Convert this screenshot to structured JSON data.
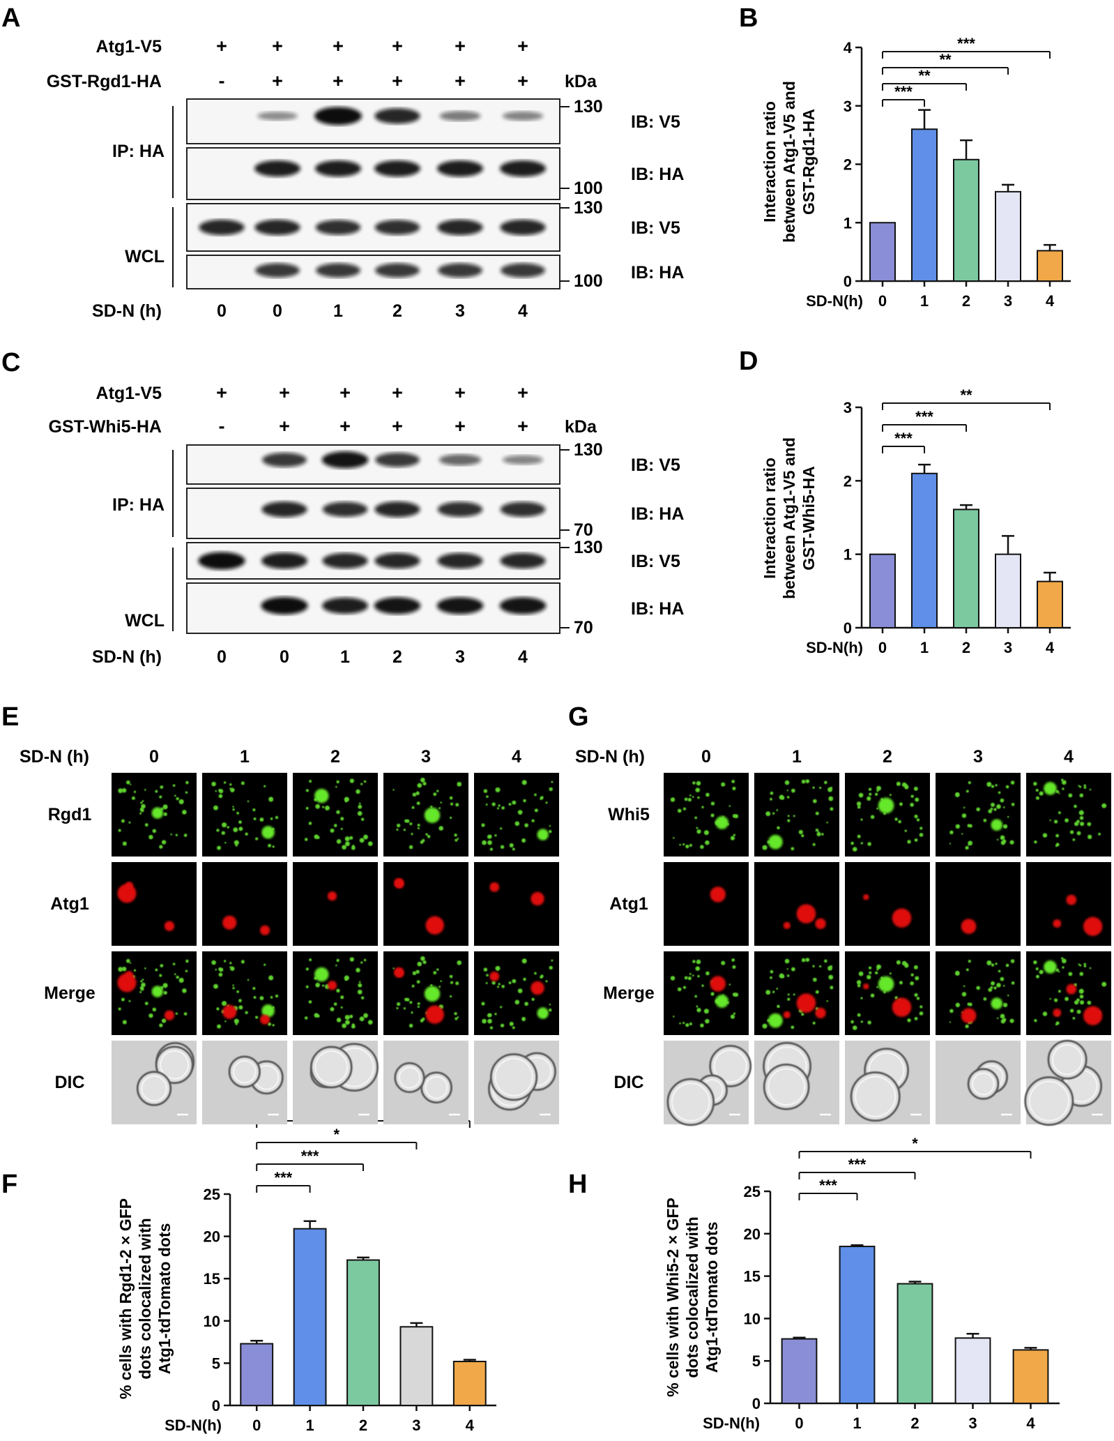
{
  "panels": [
    "A",
    "B",
    "C",
    "D",
    "E",
    "F",
    "G",
    "H"
  ],
  "panel_A": {
    "row1_label": "Atg1-V5",
    "row2_label": "GST-Rgd1-HA",
    "row1_signs": [
      "+",
      "+",
      "+",
      "+",
      "+",
      "+"
    ],
    "row2_signs": [
      "-",
      "+",
      "+",
      "+",
      "+",
      "+"
    ],
    "kda": "kDa",
    "ip_label": "IP: HA",
    "wcl_label": "WCL",
    "ib": [
      "IB:  V5",
      "IB:  HA",
      "IB:  V5",
      "IB:  HA"
    ],
    "markers": [
      "130",
      "100",
      "130",
      "100"
    ],
    "sdn_label": "SD-N (h)",
    "sdn_values": [
      "0",
      "0",
      "1",
      "2",
      "3",
      "4"
    ],
    "band_intensity": [
      [
        0,
        0.25,
        1.0,
        0.8,
        0.35,
        0.3
      ],
      [
        0,
        0.85,
        0.85,
        0.85,
        0.85,
        0.85
      ],
      [
        0.8,
        0.8,
        0.75,
        0.75,
        0.8,
        0.8
      ],
      [
        0,
        0.7,
        0.7,
        0.7,
        0.7,
        0.7
      ]
    ]
  },
  "panel_C": {
    "row1_label": "Atg1-V5",
    "row2_label": "GST-Whi5-HA",
    "row1_signs": [
      "+",
      "+",
      "+",
      "+",
      "+",
      "+"
    ],
    "row2_signs": [
      "-",
      "+",
      "+",
      "+",
      "+",
      "+"
    ],
    "kda": "kDa",
    "ip_label": "IP: HA",
    "wcl_label": "WCL",
    "ib": [
      "IB:  V5",
      "IB:  HA",
      "IB:  V5",
      "IB:  HA"
    ],
    "markers": [
      "130",
      "70",
      "130",
      "70"
    ],
    "sdn_label": "SD-N (h)",
    "sdn_values": [
      "0",
      "0",
      "1",
      "2",
      "3",
      "4"
    ],
    "band_intensity": [
      [
        0,
        0.7,
        0.9,
        0.7,
        0.45,
        0.3
      ],
      [
        0,
        0.8,
        0.75,
        0.8,
        0.75,
        0.75
      ],
      [
        0.95,
        0.85,
        0.8,
        0.8,
        0.8,
        0.8
      ],
      [
        0,
        0.95,
        0.85,
        0.9,
        0.9,
        0.9
      ]
    ]
  },
  "panel_E": {
    "sdn_label": "SD-N (h)",
    "columns": [
      "0",
      "1",
      "2",
      "3",
      "4"
    ],
    "rows": [
      "Rgd1",
      "Atg1",
      "Merge",
      "DIC"
    ]
  },
  "panel_G": {
    "sdn_label": "SD-N (h)",
    "columns": [
      "0",
      "1",
      "2",
      "3",
      "4"
    ],
    "rows": [
      "Whi5",
      "Atg1",
      "Merge",
      "DIC"
    ]
  },
  "colors": [
    "#8a8ed6",
    "#5f8fe8",
    "#7cc9a0",
    "#e4e6f6",
    "#f0a848"
  ],
  "colors_F": [
    "#8a8ed6",
    "#5f8fe8",
    "#7cc9a0",
    "#d8d8d8",
    "#f0a848"
  ],
  "chart_data": [
    {
      "panel": "B",
      "type": "bar",
      "categories": [
        "0",
        "1",
        "2",
        "3",
        "4"
      ],
      "values": [
        1.0,
        2.6,
        2.08,
        1.53,
        0.52
      ],
      "errors": [
        0,
        0.33,
        0.33,
        0.12,
        0.1
      ],
      "xlabel": "SD-N(h)",
      "ylabel": [
        "Interaction ratio",
        "between Atg1-V5 and",
        "GST-Rgd1-HA"
      ],
      "ylim": [
        0,
        4
      ],
      "yticks": [
        0,
        1,
        2,
        3,
        4
      ],
      "significance": [
        {
          "from": 0,
          "to": 1,
          "label": "***"
        },
        {
          "from": 0,
          "to": 2,
          "label": "**"
        },
        {
          "from": 0,
          "to": 3,
          "label": "**"
        },
        {
          "from": 0,
          "to": 4,
          "label": "***"
        }
      ]
    },
    {
      "panel": "D",
      "type": "bar",
      "categories": [
        "0",
        "1",
        "2",
        "3",
        "4"
      ],
      "values": [
        1.0,
        2.1,
        1.61,
        1.0,
        0.63
      ],
      "errors": [
        0,
        0.12,
        0.06,
        0.25,
        0.12
      ],
      "xlabel": "SD-N(h)",
      "ylabel": [
        "Interaction ratio",
        "between Atg1-V5 and",
        "GST-Whi5-HA"
      ],
      "ylim": [
        0,
        3
      ],
      "yticks": [
        0,
        1,
        2,
        3
      ],
      "significance": [
        {
          "from": 0,
          "to": 1,
          "label": "***"
        },
        {
          "from": 0,
          "to": 2,
          "label": "***"
        },
        {
          "from": 0,
          "to": 4,
          "label": "**"
        }
      ]
    },
    {
      "panel": "F",
      "type": "bar",
      "categories": [
        "0",
        "1",
        "2",
        "3",
        "4"
      ],
      "values": [
        7.3,
        20.9,
        17.2,
        9.3,
        5.2
      ],
      "errors": [
        0.35,
        0.9,
        0.3,
        0.45,
        0.2
      ],
      "xlabel": "SD-N(h)",
      "ylabel": [
        "% cells with Rgd1-2 × GFP",
        "dots colocalized with",
        "Atg1-tdTomato dots"
      ],
      "ylim": [
        0,
        25
      ],
      "yticks": [
        0,
        5,
        10,
        15,
        20,
        25
      ],
      "significance": [
        {
          "from": 0,
          "to": 1,
          "label": "***"
        },
        {
          "from": 0,
          "to": 2,
          "label": "***"
        },
        {
          "from": 0,
          "to": 3,
          "label": "*"
        },
        {
          "from": 0,
          "to": 4,
          "label": "**"
        }
      ]
    },
    {
      "panel": "H",
      "type": "bar",
      "categories": [
        "0",
        "1",
        "2",
        "3",
        "4"
      ],
      "values": [
        7.6,
        18.5,
        14.1,
        7.7,
        6.3
      ],
      "errors": [
        0.15,
        0.15,
        0.25,
        0.5,
        0.25
      ],
      "xlabel": "SD-N(h)",
      "ylabel": [
        "% cells with Whi5-2 × GFP",
        "dots colocalized with",
        "Atg1-tdTomato dots"
      ],
      "ylim": [
        0,
        25
      ],
      "yticks": [
        0,
        5,
        10,
        15,
        20,
        25
      ],
      "significance": [
        {
          "from": 0,
          "to": 1,
          "label": "***"
        },
        {
          "from": 0,
          "to": 2,
          "label": "***"
        },
        {
          "from": 0,
          "to": 4,
          "label": "*"
        }
      ]
    }
  ]
}
